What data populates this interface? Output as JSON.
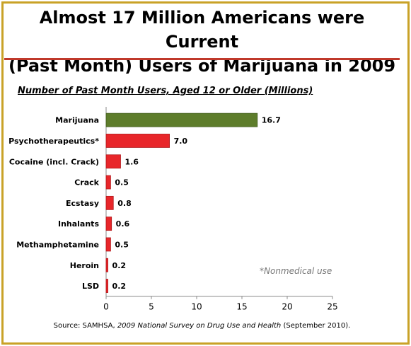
{
  "title_line1": "Almost 17 Million Americans were Current",
  "title_line2": "(Past Month) Users of Marijuana in 2009",
  "footnote": "*Nonmedical use",
  "source": {
    "prefix": "Source:  SAMHSA, ",
    "title": "2009 National Survey on Drug Use and Health",
    "suffix": " (September 2010)."
  },
  "colors": {
    "frame": "#c9a227",
    "rule": "#c0392b",
    "marijuana_bar": "#5e7d2b",
    "other_bars": "#e8262a"
  },
  "chart_data": {
    "type": "bar",
    "orientation": "horizontal",
    "title": "Number of Past Month Users, Aged 12 or Older (Millions)",
    "categories": [
      "Marijuana",
      "Psychotherapeutics*",
      "Cocaine (incl. Crack)",
      "Crack",
      "Ecstasy",
      "Inhalants",
      "Methamphetamine",
      "Heroin",
      "LSD"
    ],
    "values": [
      16.7,
      7.0,
      1.6,
      0.5,
      0.8,
      0.6,
      0.5,
      0.2,
      0.2
    ],
    "value_labels": [
      "16.7",
      "7.0",
      "1.6",
      "0.5",
      "0.8",
      "0.6",
      "0.5",
      "0.2",
      "0.2"
    ],
    "xlim": [
      0,
      25
    ],
    "xticks": [
      0,
      5,
      10,
      15,
      20,
      25
    ],
    "xlabel": "",
    "ylabel": "",
    "grid": false,
    "legend": "none"
  }
}
